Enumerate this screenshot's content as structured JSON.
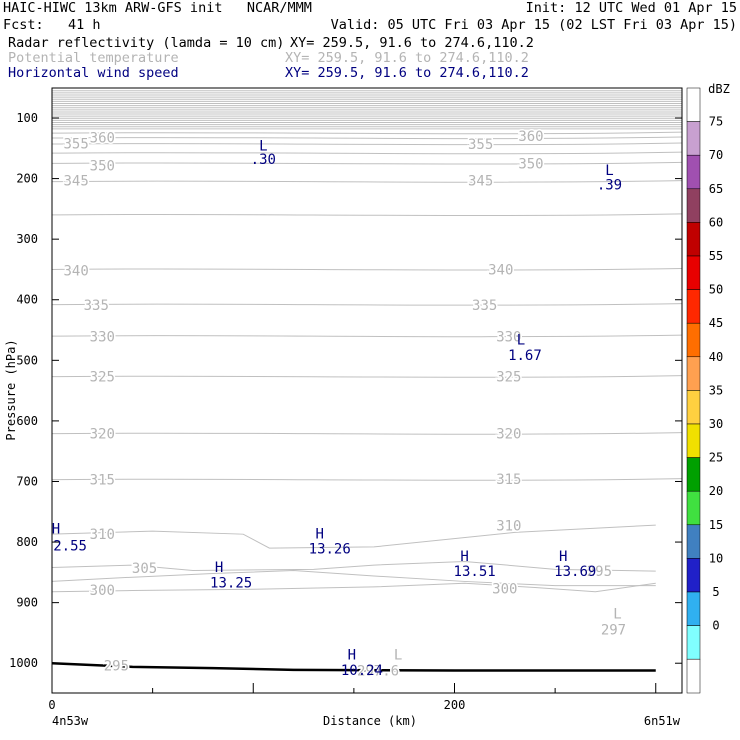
{
  "header": {
    "title_line": "HAIC-HIWC 13km ARW-GFS init   NCAR/MMM",
    "init": "Init: 12 UTC Wed 01 Apr 15",
    "fcst": "Fcst:   41 h",
    "valid": "Valid: 05 UTC Fri 03 Apr 15 (02 LST Fri 03 Apr 15)",
    "fields": [
      {
        "label": "Radar reflectivity (lamda = 10 cm)",
        "xy": "XY= 259.5, 91.6 to 274.6,110.2",
        "color": "#000000"
      },
      {
        "label": "Potential temperature",
        "xy": "XY= 259.5, 91.6 to 274.6,110.2",
        "color": "#b4b4b4"
      },
      {
        "label": "Horizontal wind speed",
        "xy": "XY= 259.5, 91.6 to 274.6,110.2",
        "color": "#000080"
      }
    ]
  },
  "chart_data": {
    "type": "contour",
    "ylabel": "Pressure (hPa)",
    "xlabel": "Distance (km)",
    "x_left_label": "4n53w",
    "x_right_label": "6n51w",
    "x_ticks": [
      {
        "value": 0,
        "label": "0"
      },
      {
        "value": 200,
        "label": "200"
      }
    ],
    "xlim": [
      0,
      300
    ],
    "y_ticks": [
      100,
      200,
      300,
      400,
      500,
      600,
      700,
      800,
      900,
      1000
    ],
    "ylim": [
      1050,
      50
    ],
    "colorbar": {
      "unit": "dBZ",
      "levels": [
        {
          "label": "75",
          "color": "#c8a0d0"
        },
        {
          "label": "70",
          "color": "#a050b0"
        },
        {
          "label": "65",
          "color": "#904060"
        },
        {
          "label": "60",
          "color": "#c00000"
        },
        {
          "label": "55",
          "color": "#e80000"
        },
        {
          "label": "50",
          "color": "#ff2800"
        },
        {
          "label": "45",
          "color": "#ff6e00"
        },
        {
          "label": "40",
          "color": "#ffa050"
        },
        {
          "label": "35",
          "color": "#ffd040"
        },
        {
          "label": "30",
          "color": "#f0e000"
        },
        {
          "label": "25",
          "color": "#00a000"
        },
        {
          "label": "20",
          "color": "#40e040"
        },
        {
          "label": "15",
          "color": "#4080c0"
        },
        {
          "label": "10",
          "color": "#2020c8"
        },
        {
          "label": "5",
          "color": "#30b0f0"
        },
        {
          "label": "0",
          "color": "#80ffff"
        }
      ]
    },
    "theta_labels": [
      {
        "text": "360",
        "x": 25,
        "p": 132
      },
      {
        "text": "360",
        "x": 238,
        "p": 130
      },
      {
        "text": "355",
        "x": 12,
        "p": 142
      },
      {
        "text": "355",
        "x": 213,
        "p": 143
      },
      {
        "text": "350",
        "x": 25,
        "p": 178
      },
      {
        "text": "350",
        "x": 238,
        "p": 175
      },
      {
        "text": "345",
        "x": 12,
        "p": 203
      },
      {
        "text": "345",
        "x": 213,
        "p": 203
      },
      {
        "text": "340",
        "x": 12,
        "p": 352
      },
      {
        "text": "340",
        "x": 223,
        "p": 350
      },
      {
        "text": "335",
        "x": 22,
        "p": 409
      },
      {
        "text": "335",
        "x": 215,
        "p": 409
      },
      {
        "text": "330",
        "x": 25,
        "p": 461
      },
      {
        "text": "330",
        "x": 227,
        "p": 461
      },
      {
        "text": "325",
        "x": 25,
        "p": 527
      },
      {
        "text": "325",
        "x": 227,
        "p": 527
      },
      {
        "text": "320",
        "x": 25,
        "p": 621
      },
      {
        "text": "320",
        "x": 227,
        "p": 621
      },
      {
        "text": "315",
        "x": 25,
        "p": 697
      },
      {
        "text": "315",
        "x": 227,
        "p": 696
      },
      {
        "text": "310",
        "x": 25,
        "p": 787
      },
      {
        "text": "310",
        "x": 227,
        "p": 773
      },
      {
        "text": "305",
        "x": 46,
        "p": 843
      },
      {
        "text": "295",
        "x": 272,
        "p": 848
      },
      {
        "text": "300",
        "x": 25,
        "p": 879
      },
      {
        "text": "300",
        "x": 225,
        "p": 877
      },
      {
        "text": "295",
        "x": 32,
        "p": 1004
      },
      {
        "text": "297.6",
        "x": 162,
        "p": 1012
      },
      {
        "text": "297",
        "x": 279,
        "p": 944
      },
      {
        "text": "L",
        "x": 281,
        "p": 918
      },
      {
        "text": "L",
        "x": 172,
        "p": 986
      }
    ],
    "wind_labels": [
      {
        "text": "L",
        "x": 105,
        "p": 145
      },
      {
        "text": ".30",
        "x": 105,
        "p": 168
      },
      {
        "text": "L",
        "x": 277,
        "p": 186
      },
      {
        "text": ".39",
        "x": 277,
        "p": 210
      },
      {
        "text": "L",
        "x": 233,
        "p": 466
      },
      {
        "text": "1.67",
        "x": 235,
        "p": 491
      },
      {
        "text": "H",
        "x": 2,
        "p": 778
      },
      {
        "text": "2.55",
        "x": 9,
        "p": 806
      },
      {
        "text": "H",
        "x": 133,
        "p": 786
      },
      {
        "text": "13.26",
        "x": 138,
        "p": 811
      },
      {
        "text": "H",
        "x": 83,
        "p": 841
      },
      {
        "text": "13.25",
        "x": 89,
        "p": 867
      },
      {
        "text": "H",
        "x": 205,
        "p": 823
      },
      {
        "text": "13.51",
        "x": 210,
        "p": 848
      },
      {
        "text": "H",
        "x": 254,
        "p": 823
      },
      {
        "text": "13.69",
        "x": 260,
        "p": 848
      },
      {
        "text": "H",
        "x": 149,
        "p": 986
      },
      {
        "text": "10.24",
        "x": 154,
        "p": 1011
      }
    ]
  }
}
